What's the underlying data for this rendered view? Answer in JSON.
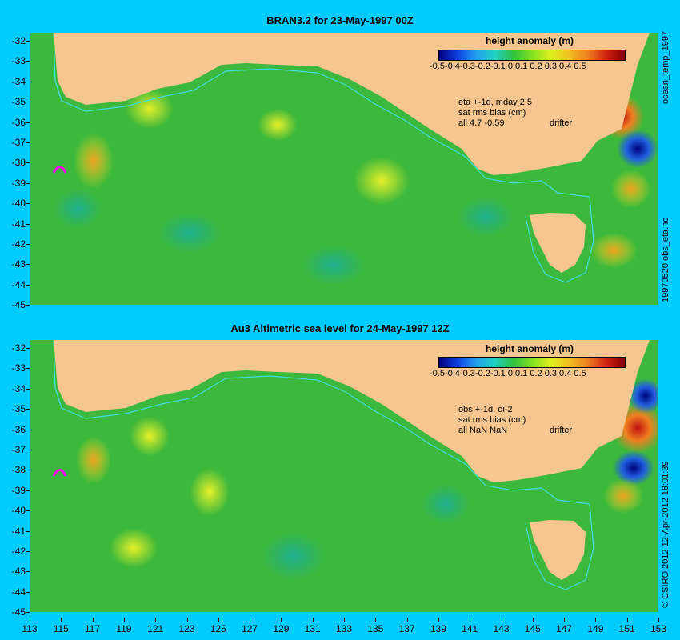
{
  "panels": [
    {
      "title": "BRAN3.2 for 23-May-1997 00Z",
      "colorbar_title": "height anomaly (m)",
      "colorbar_ticks": "-0.5-0.4-0.3-0.2-0.1  0  0.1 0.2  0.3  0.4  0.5",
      "note_line1": "eta +-1d, mday 2.5",
      "note_line2": "sat rms bias (cm)",
      "note_line3": "all 4.7 -0.59",
      "drifter_label": "drifter",
      "side_label_top": "ocean_temp_1997",
      "side_label_bottom": "19970520 obs_eta.nc"
    },
    {
      "title": "Au3 Altimetric sea level  for 24-May-1997 12Z",
      "colorbar_title": "height anomaly (m)",
      "colorbar_ticks": "-0.5-0.4-0.3-0.2-0.1  0  0.1 0.2  0.3  0.4  0.5",
      "note_line1": "obs +-1d, oi-2",
      "note_line2": "sat rms bias (cm)",
      "note_line3": "all NaN NaN",
      "drifter_label": "drifter",
      "side_label_top": "© CSIRO 2012  12-Apr-2012 18:01:39"
    }
  ],
  "axes": {
    "y_ticks": [
      "-32",
      "-33",
      "-34",
      "-35",
      "-36",
      "-37",
      "-38",
      "-39",
      "-40",
      "-41",
      "-42",
      "-43",
      "-44",
      "-45"
    ],
    "x_ticks": [
      "113",
      "115",
      "117",
      "119",
      "121",
      "123",
      "125",
      "127",
      "129",
      "131",
      "133",
      "135",
      "137",
      "139",
      "141",
      "143",
      "145",
      "147",
      "149",
      "151",
      "153"
    ],
    "y_range": [
      -45,
      -32
    ],
    "x_range": [
      113,
      153
    ]
  },
  "colors": {
    "background": "#00ccff",
    "ocean": "#3cb83c",
    "land": "#f5c690",
    "shelf_contour": "#40e0e0",
    "drifter": "#ff00ff"
  }
}
